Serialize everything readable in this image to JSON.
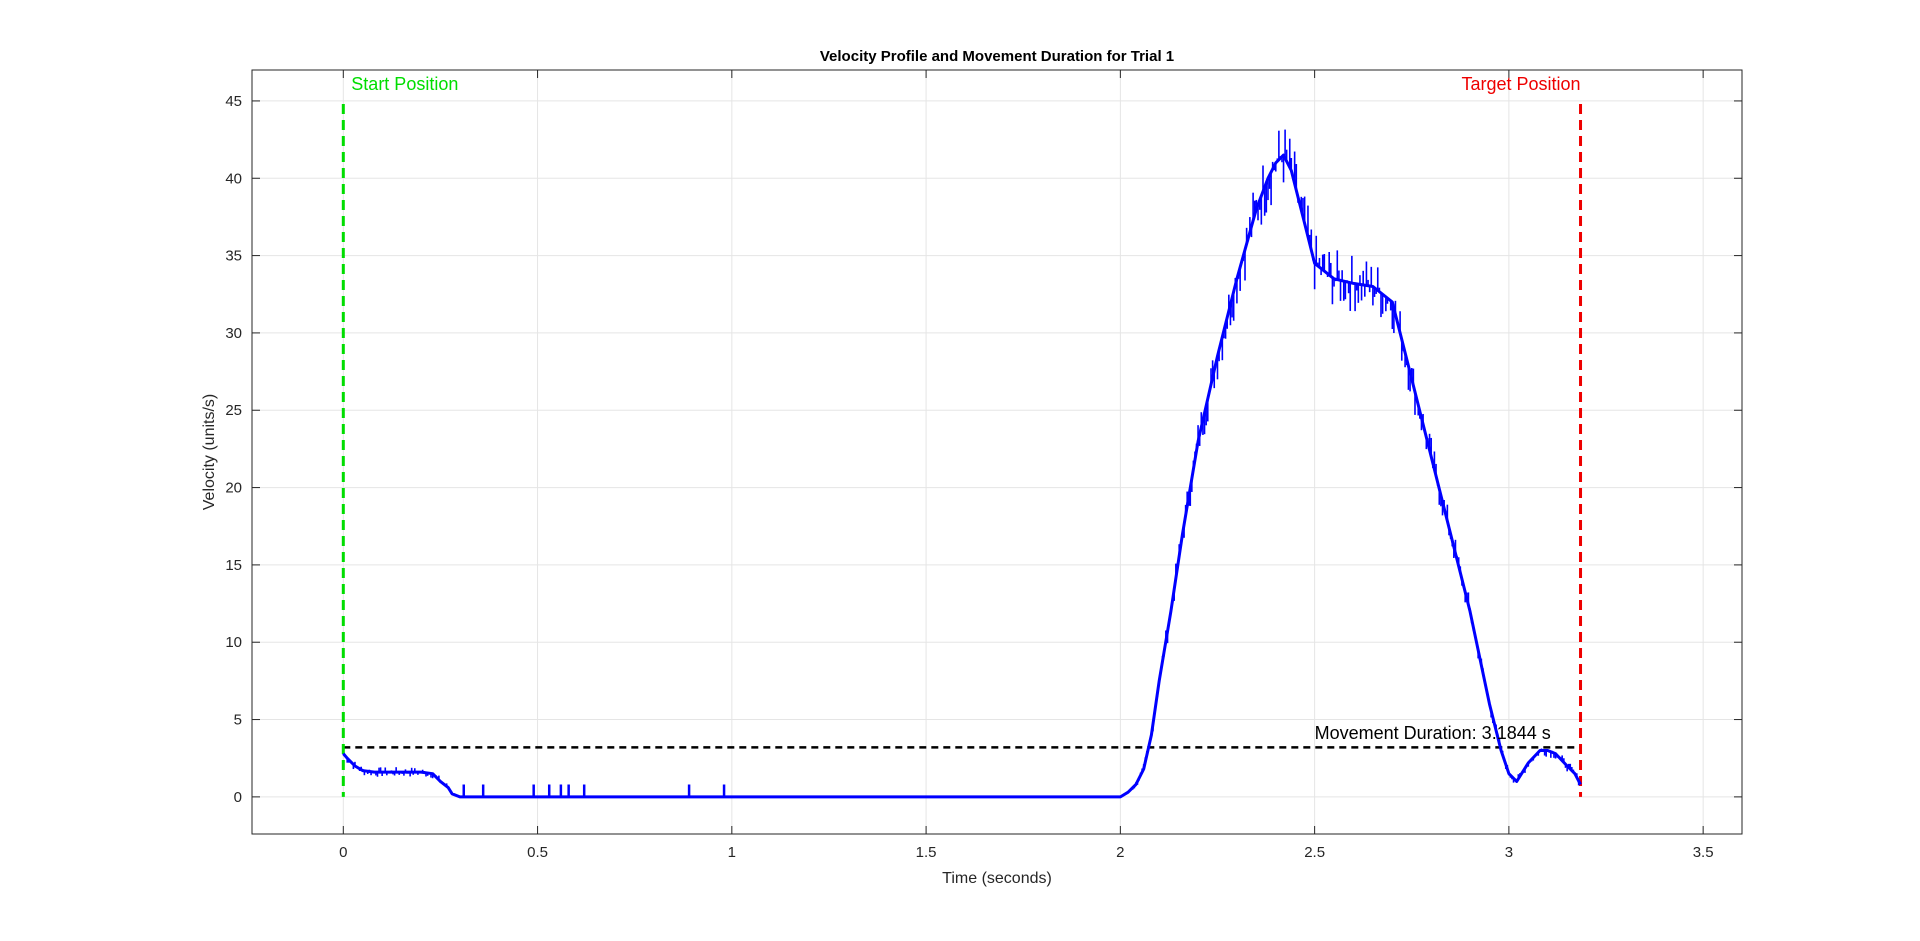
{
  "chart_data": {
    "type": "line",
    "title": "Velocity Profile and Movement Duration for Trial 1",
    "xlabel": "Time (seconds)",
    "ylabel": "Velocity (units/s)",
    "xlim": [
      -0.235,
      3.6
    ],
    "ylim": [
      -2.4,
      47
    ],
    "xticks": [
      0,
      0.5,
      1,
      1.5,
      2,
      2.5,
      3,
      3.5
    ],
    "xtick_labels": [
      "0",
      "0.5",
      "1",
      "1.5",
      "2",
      "2.5",
      "3",
      "3.5"
    ],
    "yticks": [
      0,
      5,
      10,
      15,
      20,
      25,
      30,
      35,
      40,
      45
    ],
    "ytick_labels": [
      "0",
      "5",
      "10",
      "15",
      "20",
      "25",
      "30",
      "35",
      "40",
      "45"
    ],
    "grid": true,
    "colors": {
      "series": "#0000ff",
      "start": "#00dd00",
      "target": "#ee0000",
      "threshold": "#000000",
      "grid": "#e5e5e5",
      "axes": "#262626"
    },
    "series": [
      {
        "x": [
          0,
          0.01,
          0.03,
          0.05,
          0.08,
          0.12,
          0.16,
          0.2,
          0.23,
          0.25,
          0.27,
          0.28,
          0.3,
          0.5,
          1.0,
          1.5,
          2.0,
          2.02,
          2.04,
          2.06,
          2.08,
          2.1,
          2.13,
          2.16,
          2.2,
          2.25,
          2.3,
          2.35,
          2.38,
          2.4,
          2.42,
          2.44,
          2.47,
          2.5,
          2.55,
          2.6,
          2.65,
          2.7,
          2.72,
          2.75,
          2.8,
          2.85,
          2.9,
          2.95,
          2.98,
          3.0,
          3.02,
          3.05,
          3.08,
          3.1,
          3.12,
          3.15,
          3.17,
          3.1844
        ],
        "y": [
          2.8,
          2.5,
          2.0,
          1.7,
          1.6,
          1.6,
          1.6,
          1.6,
          1.5,
          1.0,
          0.6,
          0.2,
          0.0,
          0.0,
          0.0,
          0.0,
          0.0,
          0.3,
          0.8,
          1.8,
          4.0,
          7.5,
          12.0,
          17.0,
          23.0,
          28.5,
          33.5,
          38.0,
          40.0,
          41.0,
          41.5,
          40.5,
          37.5,
          34.5,
          33.5,
          33.2,
          33.0,
          32.0,
          30.0,
          27.0,
          22.0,
          17.0,
          12.0,
          6.0,
          3.0,
          1.5,
          1.0,
          2.2,
          3.0,
          3.0,
          2.8,
          2.0,
          1.5,
          0.8
        ]
      }
    ],
    "spikes": [
      {
        "x": 0.31,
        "y": 0.8
      },
      {
        "x": 0.36,
        "y": 0.8
      },
      {
        "x": 0.49,
        "y": 0.8
      },
      {
        "x": 0.53,
        "y": 0.8
      },
      {
        "x": 0.56,
        "y": 0.8
      },
      {
        "x": 0.58,
        "y": 0.8
      },
      {
        "x": 0.62,
        "y": 0.8
      },
      {
        "x": 0.89,
        "y": 0.8
      },
      {
        "x": 0.98,
        "y": 0.8
      }
    ],
    "start_line": {
      "x": 0,
      "label": "Start Position"
    },
    "target_line": {
      "x": 3.1844,
      "label": "Target Position"
    },
    "threshold_line": {
      "y": 3.2
    },
    "duration_annotation": {
      "x": 2.5,
      "y": 3.8,
      "text": "Movement Duration: 3.1844 s"
    }
  }
}
